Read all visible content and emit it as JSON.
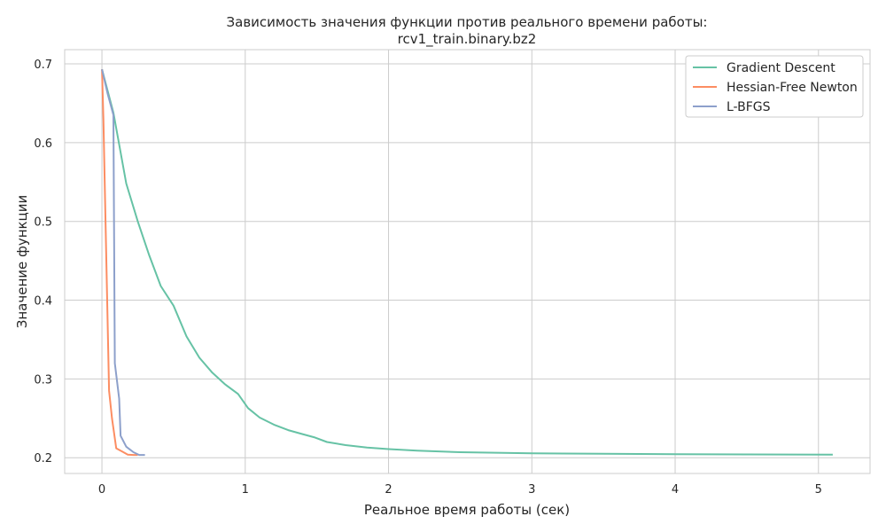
{
  "chart_data": {
    "type": "line",
    "title_lines": [
      "Зависимость значения функции против реального времени работы:",
      "rcv1_train.binary.bz2"
    ],
    "xlabel": "Реальное время работы (сек)",
    "ylabel": "Значение функции",
    "xlim": [
      -0.26,
      5.36
    ],
    "ylim": [
      0.18,
      0.718
    ],
    "x_ticks": [
      0,
      1,
      2,
      3,
      4,
      5
    ],
    "y_ticks": [
      0.2,
      0.3,
      0.4,
      0.5,
      0.6,
      0.7
    ],
    "grid": true,
    "legend_position": "top-right",
    "series": [
      {
        "name": "Gradient Descent",
        "color": "#66c2a5",
        "x": [
          0,
          0.08,
          0.17,
          0.25,
          0.33,
          0.41,
          0.5,
          0.59,
          0.68,
          0.77,
          0.86,
          0.95,
          1.02,
          1.1,
          1.2,
          1.3,
          1.4,
          1.48,
          1.57,
          1.7,
          1.85,
          2.0,
          2.2,
          2.5,
          3.0,
          3.5,
          4.0,
          4.5,
          5.1
        ],
        "y": [
          0.693,
          0.638,
          0.548,
          0.5,
          0.457,
          0.418,
          0.393,
          0.354,
          0.327,
          0.308,
          0.293,
          0.281,
          0.263,
          0.251,
          0.242,
          0.235,
          0.23,
          0.226,
          0.22,
          0.216,
          0.213,
          0.211,
          0.209,
          0.207,
          0.2055,
          0.205,
          0.2045,
          0.2042,
          0.204
        ]
      },
      {
        "name": "Hessian-Free Newton",
        "color": "#fc8d62",
        "x": [
          0,
          0.01,
          0.025,
          0.05,
          0.07,
          0.1,
          0.14,
          0.18,
          0.22,
          0.25
        ],
        "y": [
          0.693,
          0.63,
          0.5,
          0.285,
          0.25,
          0.212,
          0.208,
          0.204,
          0.2035,
          0.2035
        ]
      },
      {
        "name": "L-BFGS",
        "color": "#8da0cb",
        "x": [
          0,
          0.04,
          0.08,
          0.09,
          0.12,
          0.13,
          0.17,
          0.22,
          0.26,
          0.3
        ],
        "y": [
          0.693,
          0.662,
          0.635,
          0.32,
          0.275,
          0.228,
          0.214,
          0.207,
          0.2035,
          0.2035
        ]
      }
    ]
  }
}
